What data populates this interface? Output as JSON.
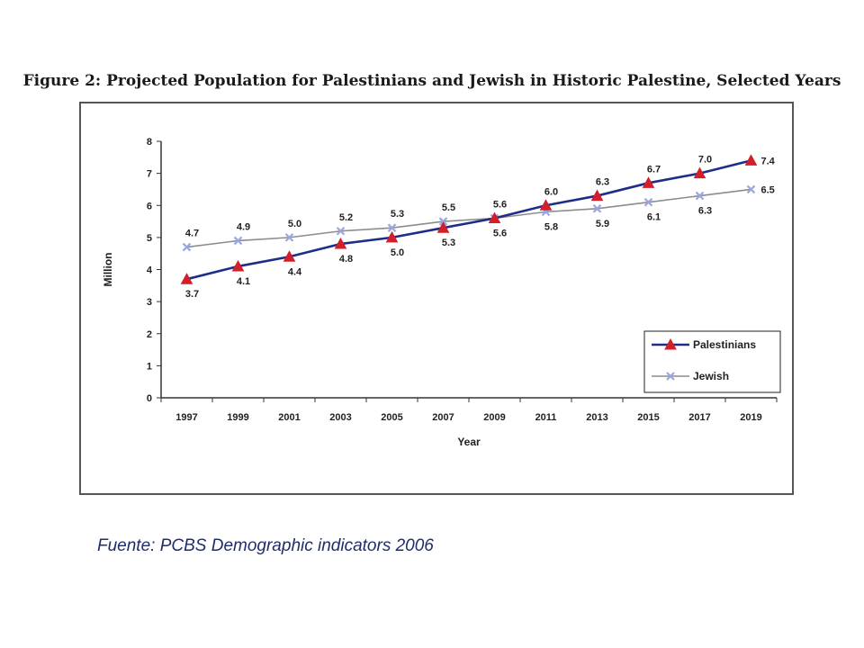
{
  "figure": {
    "title": "Figure 2: Projected Population for Palestinians and Jewish in Historic Palestine, Selected Years",
    "source": "Fuente: PCBS Demographic indicators 2006"
  },
  "chart_data": {
    "type": "line",
    "title": "Figure 2: Projected Population for Palestinians and Jewish in Historic Palestine, Selected Years",
    "xlabel": "Year",
    "ylabel": "Million",
    "categories": [
      "1997",
      "1999",
      "2001",
      "2003",
      "2005",
      "2007",
      "2009",
      "2011",
      "2013",
      "2015",
      "2017",
      "2019"
    ],
    "ylim": [
      0,
      8
    ],
    "yticks": [
      "0",
      "1",
      "2",
      "3",
      "4",
      "5",
      "6",
      "7",
      "8"
    ],
    "grid": false,
    "legend_position": "bottom-right",
    "series": [
      {
        "name": "Palestinians",
        "values": [
          3.7,
          4.1,
          4.4,
          4.8,
          5.0,
          5.3,
          5.6,
          6.0,
          6.3,
          6.7,
          7.0,
          7.4
        ],
        "labels": [
          "3.7",
          "4.1",
          "4.4",
          "4.8",
          "5.0",
          "5.3",
          "5.6",
          "6.0",
          "6.3",
          "6.7",
          "7.0",
          "7.4"
        ],
        "label_positions": [
          "below",
          "below",
          "below",
          "below",
          "below",
          "below",
          "below",
          "above",
          "above",
          "above",
          "above",
          "right"
        ],
        "color": "#1f2d8a",
        "marker_color": "#d21f2a",
        "marker": "triangle-icon"
      },
      {
        "name": "Jewish",
        "values": [
          4.7,
          4.9,
          5.0,
          5.2,
          5.3,
          5.5,
          5.6,
          5.8,
          5.9,
          6.1,
          6.3,
          6.5
        ],
        "labels": [
          "4.7",
          "4.9",
          "5.0",
          "5.2",
          "5.3",
          "5.5",
          "5.6",
          "5.8",
          "5.9",
          "6.1",
          "6.3",
          "6.5"
        ],
        "label_positions": [
          "above",
          "above",
          "above",
          "above",
          "above",
          "above",
          "above",
          "below",
          "below",
          "below",
          "below",
          "right"
        ],
        "color": "#8c8c8c",
        "marker_color": "#9aa7e0",
        "marker": "x-icon"
      }
    ]
  }
}
